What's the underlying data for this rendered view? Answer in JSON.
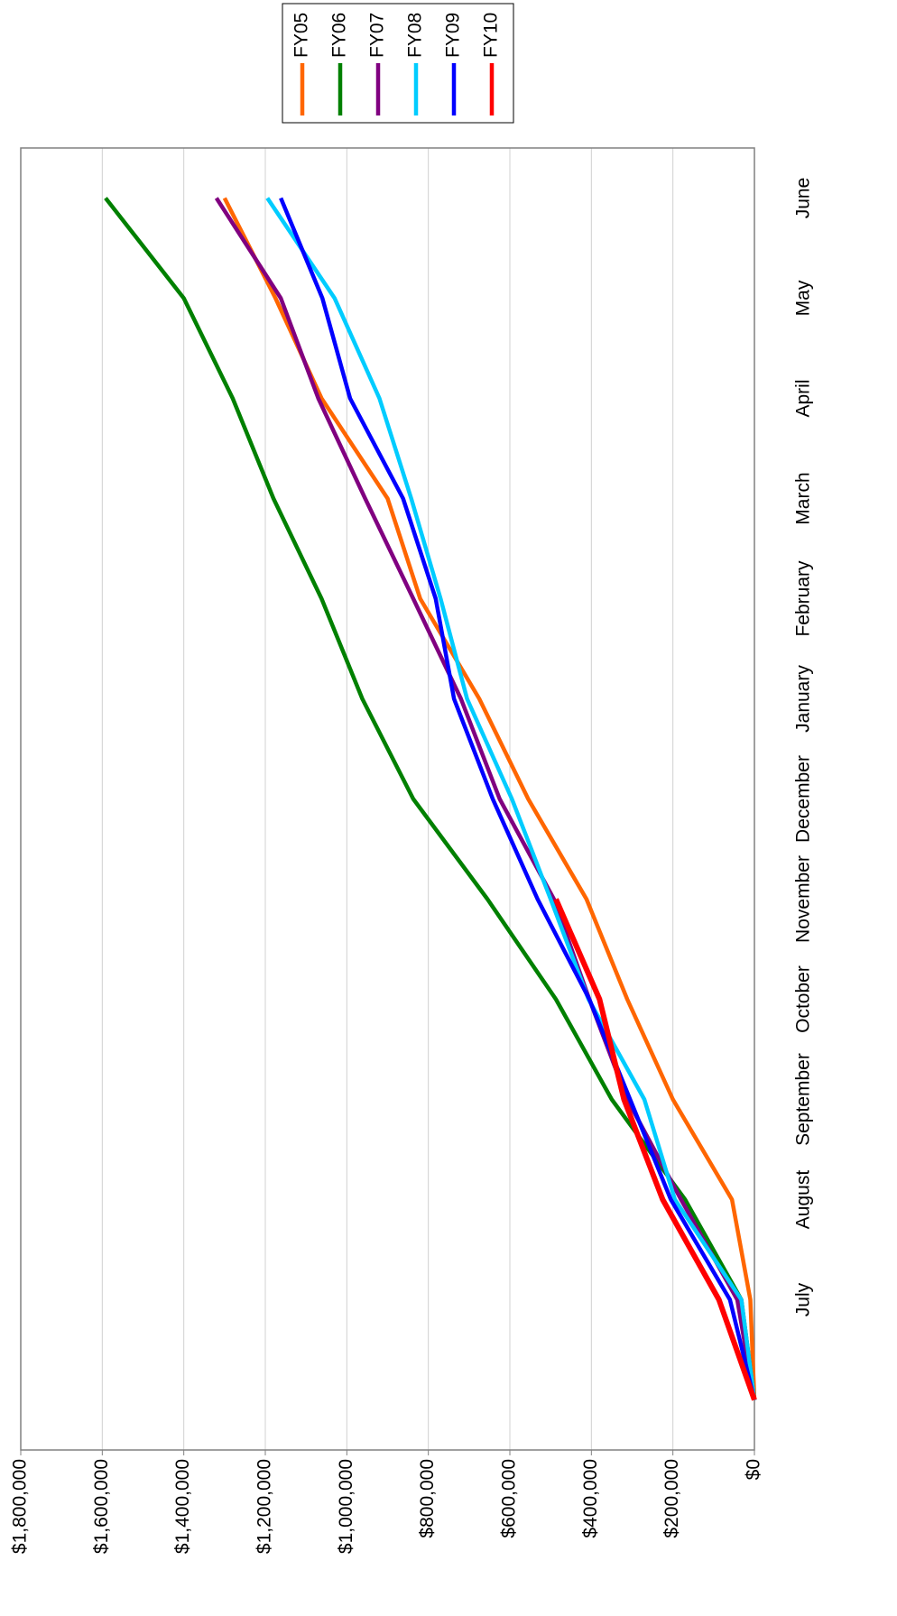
{
  "chart_data": {
    "type": "line",
    "categories": [
      null,
      "July",
      "August",
      "September",
      "October",
      "November",
      "December",
      "January",
      "February",
      "March",
      "April",
      "May",
      "June"
    ],
    "series": [
      {
        "name": "FY05",
        "color": "#ff6600",
        "values": [
          0,
          10000,
          55000,
          200000,
          312000,
          412000,
          555000,
          675000,
          820000,
          900000,
          1062000,
          1175000,
          1300000
        ]
      },
      {
        "name": "FY06",
        "color": "#008000",
        "values": [
          0,
          32000,
          170000,
          350000,
          487000,
          655000,
          837000,
          962000,
          1062000,
          1180000,
          1280000,
          1400000,
          1592000
        ]
      },
      {
        "name": "FY07",
        "color": "#800080",
        "values": [
          0,
          42000,
          180000,
          312000,
          405000,
          492000,
          625000,
          720000,
          837000,
          955000,
          1070000,
          1162000,
          1320000
        ]
      },
      {
        "name": "FY08",
        "color": "#00ccff",
        "values": [
          0,
          32000,
          195000,
          270000,
          407000,
          500000,
          595000,
          705000,
          770000,
          842000,
          920000,
          1030000,
          1195000
        ]
      },
      {
        "name": "FY09",
        "color": "#0000ff",
        "values": [
          0,
          60000,
          205000,
          305000,
          405000,
          532000,
          642000,
          737000,
          782000,
          862000,
          992000,
          1060000,
          1162000
        ]
      },
      {
        "name": "FY10",
        "color": "#ff0000",
        "values": [
          0,
          87000,
          225000,
          320000,
          380000,
          487000,
          null,
          null,
          null,
          null,
          null,
          null,
          null
        ]
      }
    ],
    "ylim": [
      0,
      1800000
    ],
    "yticks": [
      {
        "value": 0,
        "label": "$0"
      },
      {
        "value": 200000,
        "label": "$200,000"
      },
      {
        "value": 400000,
        "label": "$400,000"
      },
      {
        "value": 600000,
        "label": "$600,000"
      },
      {
        "value": 800000,
        "label": "$800,000"
      },
      {
        "value": 1000000,
        "label": "$1,000,000"
      },
      {
        "value": 1200000,
        "label": "$1,200,000"
      },
      {
        "value": 1400000,
        "label": "$1,400,000"
      },
      {
        "value": 1600000,
        "label": "$1,600,000"
      },
      {
        "value": 1800000,
        "label": "$1,800,000"
      }
    ],
    "grid": true,
    "legend": "right",
    "rotation": -90
  }
}
